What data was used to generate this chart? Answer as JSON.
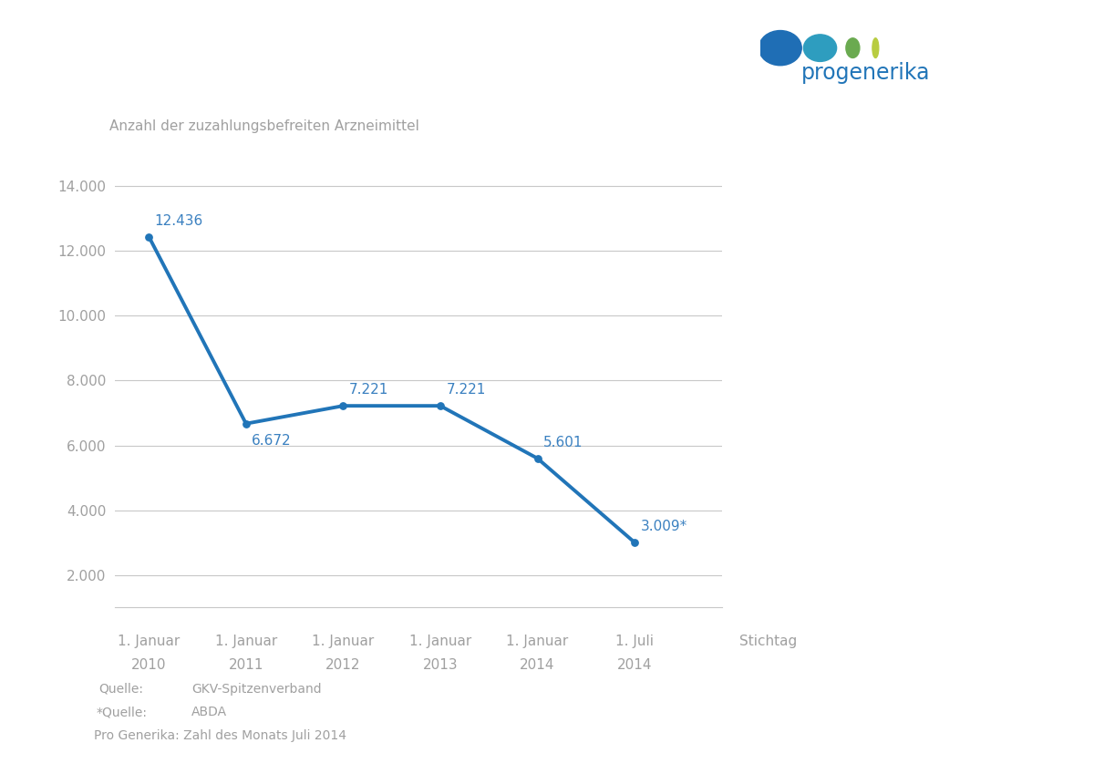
{
  "x_labels_line1": [
    "1. Januar",
    "1. Januar",
    "1. Januar",
    "1. Januar",
    "1. Januar",
    "1. Juli"
  ],
  "x_labels_line2": [
    "2010",
    "2011",
    "2012",
    "2013",
    "2014",
    "2014"
  ],
  "x_positions": [
    0,
    1,
    2,
    3,
    4,
    5
  ],
  "y_values": [
    12436,
    6672,
    7221,
    7221,
    5601,
    3009
  ],
  "y_labels": [
    "12.436",
    "6.672",
    "7.221",
    "7.221",
    "5.601",
    "3.009*"
  ],
  "label_offsets_y": [
    280,
    -310,
    280,
    280,
    280,
    280
  ],
  "line_color": "#2175b8",
  "axis_title": "Anzahl der zuzahlungsbefreiten Arzneimittel",
  "x_axis_label": "Stichtag",
  "yticks": [
    2000,
    4000,
    6000,
    8000,
    10000,
    12000,
    14000
  ],
  "ytick_labels": [
    "2.000",
    "4.000",
    "6.000",
    "8.000",
    "10.000",
    "12.000",
    "14.000"
  ],
  "ylim": [
    1000,
    15200
  ],
  "source_text1_left": "Quelle:",
  "source_text1_right": "GKV-Spitzenverband",
  "source_text2_left": "*Quelle:",
  "source_text2_right": "ABDA",
  "source_text3": "Pro Generika: Zahl des Monats Juli 2014",
  "background_color": "#ffffff",
  "grid_color": "#c8c8c8",
  "text_color": "#a0a0a0",
  "label_color": "#3a80c0",
  "logo_dot_colors": [
    "#1f6eb5",
    "#2e9dbf",
    "#6aaa50",
    "#b8cc40"
  ],
  "logo_text": "progenerika",
  "logo_text_color": "#2175b8"
}
